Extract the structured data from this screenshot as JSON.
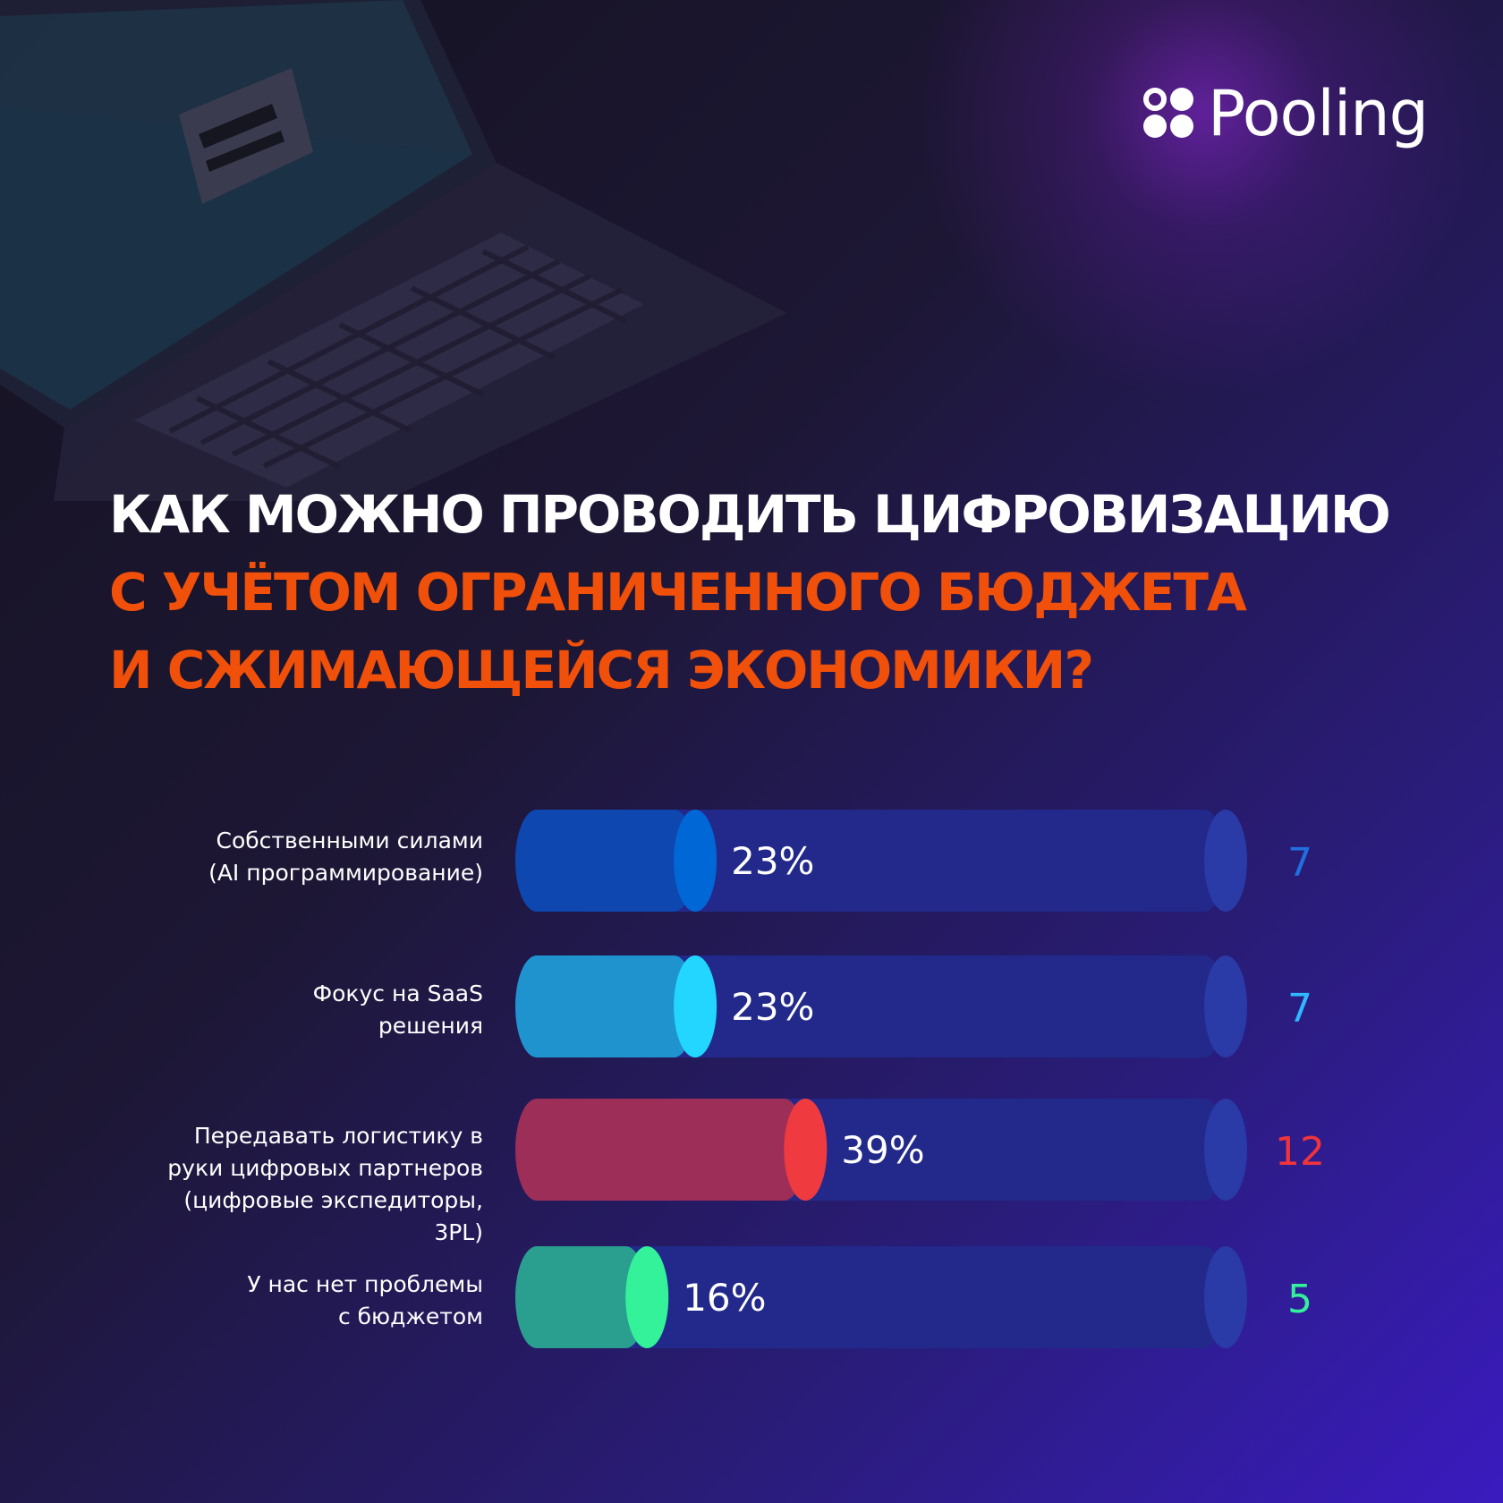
{
  "brand": {
    "name": "Pooling"
  },
  "title_lines": [
    "КАК МОЖНО ПРОВОДИТЬ ЦИФРОВИЗАЦИЮ",
    "С УЧЁТОМ ОГРАНИЧЕННОГО БЮДЖЕТА",
    "И СЖИМАЮЩЕЙСЯ ЭКОНОМИКИ?"
  ],
  "colors": {
    "title_white": "#ffffff",
    "title_accent": "#f0500a",
    "track": "#22298a",
    "track_cap": "#2a3aa6"
  },
  "chart_data": {
    "type": "bar",
    "orientation": "horizontal",
    "categories": [
      "Собственными силами\n(AI программирование)",
      "Фокус на SaaS\nрешения",
      "Передавать логистику в\nруки цифровых партнеров\n(цифровые экспедиторы,\n3PL)",
      "У нас нет проблемы\nс бюджетом"
    ],
    "values": [
      23,
      23,
      39,
      16
    ],
    "value_labels": [
      "23%",
      "23%",
      "39%",
      "16%"
    ],
    "counts": [
      "7",
      "7",
      "12",
      "5"
    ],
    "xlim": [
      0,
      100
    ],
    "bar_colors": [
      "#0e47b0",
      "#1f93ce",
      "#9c2e58",
      "#2a9e8f"
    ],
    "cap_colors": [
      "#0068d6",
      "#22d6ff",
      "#ef3a3f",
      "#33f29a"
    ],
    "count_colors": [
      "#1f6fe0",
      "#2fb8ff",
      "#f0343c",
      "#33f09a"
    ]
  }
}
